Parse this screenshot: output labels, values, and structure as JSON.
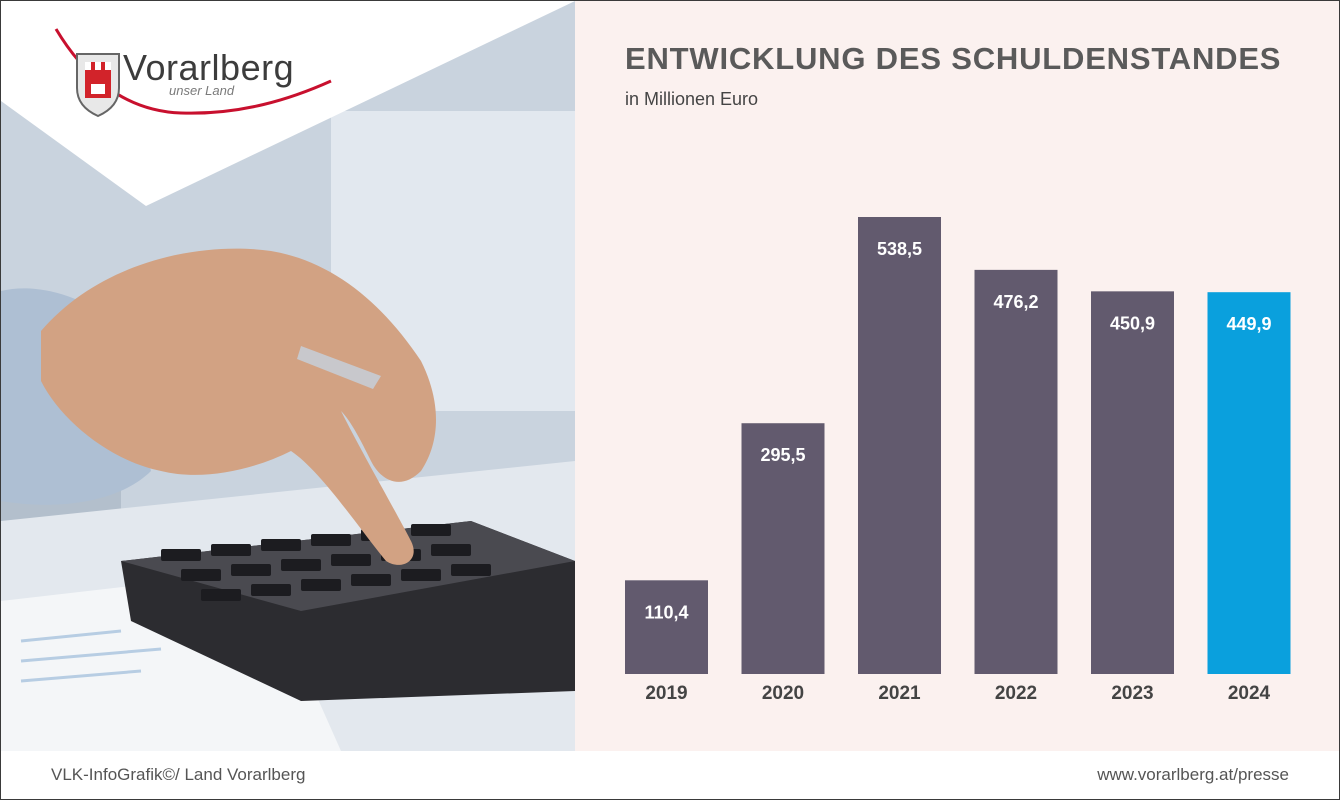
{
  "logo": {
    "name": "Vorarlberg",
    "tagline": "unser Land"
  },
  "chart_data": {
    "type": "bar",
    "title": "ENTWICKLUNG DES SCHULDENSTANDES",
    "subtitle": "in Millionen Euro",
    "categories": [
      "2019",
      "2020",
      "2021",
      "2022",
      "2023",
      "2024"
    ],
    "values": [
      110.4,
      295.5,
      538.5,
      476.2,
      450.9,
      449.9
    ],
    "labels": [
      "110,4",
      "295,5",
      "538,5",
      "476,2",
      "450,9",
      "449,9"
    ],
    "highlight_index": 5,
    "colors": {
      "bar": "#625a6e",
      "highlight": "#0aa0dd",
      "label": "#ffffff",
      "axis_text": "#444444"
    },
    "grid": false,
    "legend": "none"
  },
  "footer": {
    "left": "VLK-InfoGrafik©/ Land Vorarlberg",
    "right": "www.vorarlberg.at/presse"
  }
}
